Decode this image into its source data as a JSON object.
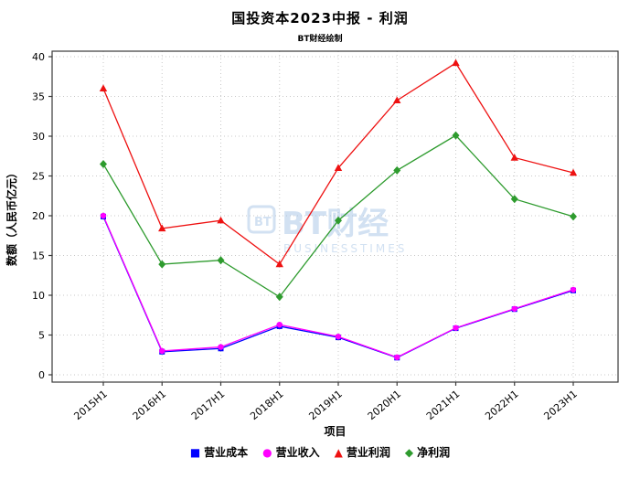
{
  "title": "国投资本2023中报 - 利润",
  "subtitle": "BT财经绘制",
  "watermark": {
    "line1": "BT财经",
    "line2": "BUSINESSTIMES"
  },
  "chart_data": {
    "type": "line",
    "title": "国投资本2023中报 - 利润",
    "xlabel": "项目",
    "ylabel": "数额（人民币亿元）",
    "ylim": [
      0,
      40
    ],
    "yticks": [
      0,
      5,
      10,
      15,
      20,
      25,
      30,
      35,
      40
    ],
    "grid": true,
    "legend_position": "bottom",
    "categories": [
      "2015H1",
      "2016H1",
      "2017H1",
      "2018H1",
      "2019H1",
      "2020H1",
      "2021H1",
      "2022H1",
      "2023H1"
    ],
    "series": [
      {
        "name": "营业成本",
        "marker": "square",
        "color": "#0000ff",
        "values": [
          19.9,
          2.9,
          3.3,
          6.1,
          4.7,
          2.15,
          5.85,
          8.25,
          10.6
        ]
      },
      {
        "name": "营业收入",
        "marker": "circle",
        "color": "#ff00ff",
        "values": [
          20.0,
          3.0,
          3.5,
          6.3,
          4.8,
          2.2,
          5.9,
          8.3,
          10.7
        ]
      },
      {
        "name": "营业利润",
        "marker": "triangle",
        "color": "#ee1111",
        "values": [
          36.0,
          18.4,
          19.4,
          13.9,
          26.0,
          34.5,
          39.2,
          27.3,
          25.4
        ]
      },
      {
        "name": "净利润",
        "marker": "diamond",
        "color": "#2e9b2e",
        "values": [
          26.5,
          13.9,
          14.4,
          9.8,
          19.4,
          25.7,
          30.1,
          22.1,
          19.9
        ]
      }
    ],
    "colors": {
      "grid": "#c8c8c8",
      "axis": "#3a3a3a",
      "watermark": "#a6c4e6"
    }
  }
}
